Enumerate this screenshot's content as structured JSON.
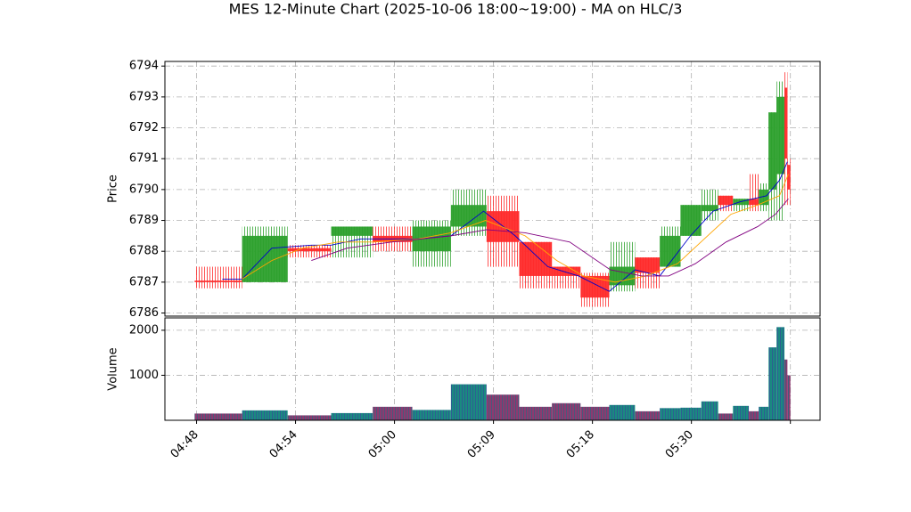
{
  "chart_data": [
    {
      "type": "candlestick",
      "title": "MES 12-Minute Chart (2025-10-06 18:00~19:00) - MA on HLC/3",
      "ylabel": "Price",
      "xlim": [
        -3.2,
        63
      ],
      "ylim": [
        6785.9,
        6794.15
      ],
      "yticks": [
        6786,
        6787,
        6788,
        6789,
        6790,
        6791,
        6792,
        6793,
        6794
      ],
      "xticks": [
        0,
        10,
        20,
        30,
        40,
        50,
        60
      ],
      "grid": true,
      "up_color": "#2ca02c",
      "down_color": "#ff2a2a",
      "x_start": [
        -0.2,
        4.6,
        9.2,
        13.6,
        17.8,
        21.8,
        25.7,
        29.3,
        32.6,
        35.9,
        38.8,
        41.7,
        44.3,
        46.8,
        48.9,
        51.0,
        52.7,
        54.2,
        55.8,
        56.8,
        57.8,
        58.6,
        59.4,
        59.7
      ],
      "x_end": [
        4.6,
        9.2,
        13.6,
        17.8,
        21.8,
        25.7,
        29.3,
        32.6,
        35.9,
        38.8,
        41.7,
        44.3,
        46.8,
        48.9,
        51.0,
        52.7,
        54.2,
        55.8,
        56.8,
        57.8,
        58.6,
        59.4,
        59.7,
        60.0
      ],
      "open": [
        6787.05,
        6787.0,
        6788.1,
        6788.5,
        6788.5,
        6788.0,
        6788.8,
        6789.3,
        6788.3,
        6787.5,
        6787.2,
        6786.9,
        6787.8,
        6787.5,
        6788.5,
        6789.3,
        6789.8,
        6789.5,
        6789.7,
        6789.5,
        6790.0,
        6790.5,
        6793.3,
        6790.8
      ],
      "high": [
        6787.5,
        6788.8,
        6788.2,
        6788.8,
        6788.8,
        6789.0,
        6790.0,
        6789.8,
        6788.3,
        6787.5,
        6787.3,
        6788.3,
        6787.8,
        6788.8,
        6789.5,
        6790.0,
        6789.8,
        6789.7,
        6790.5,
        6790.2,
        6792.5,
        6793.5,
        6793.8,
        6791.0
      ],
      "low": [
        6786.8,
        6787.0,
        6787.8,
        6787.8,
        6788.0,
        6787.5,
        6788.5,
        6787.5,
        6786.8,
        6786.8,
        6786.2,
        6786.7,
        6786.8,
        6787.5,
        6788.5,
        6789.0,
        6789.3,
        6789.3,
        6789.3,
        6789.3,
        6789.0,
        6789.0,
        6789.5,
        6789.5
      ],
      "close": [
        6787.0,
        6788.5,
        6788.0,
        6788.8,
        6788.3,
        6788.8,
        6789.5,
        6788.3,
        6787.2,
        6787.2,
        6786.5,
        6787.5,
        6787.3,
        6788.5,
        6789.5,
        6789.5,
        6789.5,
        6789.7,
        6789.5,
        6790.0,
        6792.5,
        6793.0,
        6791.0,
        6790.0
      ],
      "lines": [
        {
          "color": "#0000cc",
          "x": [
            2.6,
            4.6,
            7.6,
            11.6,
            13.6,
            16.6,
            19.7,
            22.4,
            25.7,
            29.0,
            32.2,
            35.5,
            38.6,
            41.7,
            44.3,
            46.8,
            49.9,
            52.2,
            54.9,
            57.6,
            58.9,
            59.7
          ],
          "values": [
            6787.1,
            6787.1,
            6788.1,
            6788.2,
            6788.2,
            6788.4,
            6788.4,
            6788.4,
            6788.5,
            6789.3,
            6788.5,
            6787.5,
            6787.2,
            6786.7,
            6787.4,
            6787.2,
            6788.5,
            6789.3,
            6789.6,
            6789.8,
            6790.3,
            6790.9
          ]
        },
        {
          "color": "#ffa500",
          "x": [
            4.6,
            7.6,
            10.7,
            14.3,
            17.9,
            22.4,
            25.7,
            29.2,
            33.2,
            36.4,
            39.1,
            42.3,
            45.4,
            48.6,
            51.3,
            54.0,
            56.7,
            58.9,
            59.8
          ],
          "values": [
            6787.1,
            6787.7,
            6788.1,
            6788.3,
            6788.3,
            6788.4,
            6788.6,
            6789.0,
            6788.5,
            6787.7,
            6787.2,
            6787.0,
            6787.2,
            6787.6,
            6788.4,
            6789.2,
            6789.5,
            6789.8,
            6790.5
          ]
        },
        {
          "color": "#800080",
          "x": [
            11.6,
            15.2,
            19.7,
            25.7,
            29.3,
            33.2,
            37.7,
            41.8,
            45.0,
            47.7,
            50.4,
            53.5,
            56.7,
            58.5,
            59.8
          ],
          "values": [
            6787.7,
            6788.1,
            6788.3,
            6788.5,
            6788.7,
            6788.6,
            6788.3,
            6787.4,
            6787.2,
            6787.2,
            6787.6,
            6788.3,
            6788.8,
            6789.2,
            6789.7
          ]
        }
      ]
    },
    {
      "type": "bar",
      "ylabel": "Volume",
      "xlim": [
        -3.2,
        63
      ],
      "ylim": [
        0,
        2275
      ],
      "yticks": [
        1000,
        2000
      ],
      "xticks": [
        {
          "value": 0,
          "label": "04:48"
        },
        {
          "value": 10,
          "label": "04:54"
        },
        {
          "value": 20,
          "label": "05:00"
        },
        {
          "value": 30,
          "label": "05:09"
        },
        {
          "value": 40,
          "label": "05:18"
        },
        {
          "value": 50,
          "label": "05:30"
        },
        {
          "value": 60,
          "label": null
        }
      ],
      "grid": true,
      "up_color": "#1a8a80",
      "down_color": "#8c3a70",
      "values": [
        150,
        220,
        110,
        160,
        300,
        230,
        800,
        570,
        300,
        380,
        300,
        340,
        200,
        270,
        280,
        420,
        150,
        320,
        200,
        300,
        1620,
        2070,
        1350,
        1000
      ]
    }
  ]
}
